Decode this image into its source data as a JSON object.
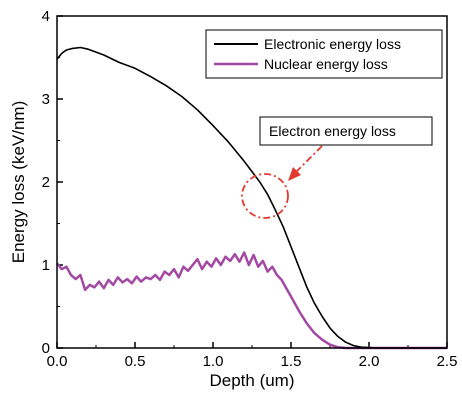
{
  "chart_data": {
    "type": "line",
    "xlabel": "Depth (um)",
    "ylabel": "Energy loss (keV/nm)",
    "xlim": [
      0.0,
      2.5
    ],
    "ylim": [
      0,
      4
    ],
    "xticks": [
      "0.0",
      "0.5",
      "1.0",
      "1.5",
      "2.0",
      "2.5"
    ],
    "yticks": [
      "0",
      "1",
      "2",
      "3",
      "4"
    ],
    "grid": false,
    "legend_position": "top-right",
    "series": [
      {
        "name": "Electronic energy loss",
        "color": "#000000",
        "x": [
          0.0,
          0.03,
          0.06,
          0.1,
          0.15,
          0.2,
          0.3,
          0.4,
          0.5,
          0.6,
          0.7,
          0.8,
          0.9,
          1.0,
          1.1,
          1.2,
          1.3,
          1.35,
          1.4,
          1.45,
          1.5,
          1.55,
          1.6,
          1.65,
          1.7,
          1.75,
          1.8,
          1.85,
          1.9,
          1.95,
          2.0,
          2.05,
          2.1,
          2.2,
          2.3,
          2.5
        ],
        "y": [
          3.48,
          3.55,
          3.59,
          3.61,
          3.62,
          3.6,
          3.53,
          3.44,
          3.37,
          3.27,
          3.16,
          3.03,
          2.87,
          2.68,
          2.48,
          2.25,
          2.0,
          1.85,
          1.66,
          1.46,
          1.22,
          0.98,
          0.74,
          0.54,
          0.38,
          0.24,
          0.14,
          0.07,
          0.03,
          0.01,
          0.005,
          0.0,
          0.0,
          0.0,
          0.0,
          0.0
        ]
      },
      {
        "name": "Nuclear energy loss",
        "color": "#a349a4",
        "x": [
          0.0,
          0.03,
          0.06,
          0.09,
          0.12,
          0.15,
          0.18,
          0.21,
          0.24,
          0.27,
          0.3,
          0.33,
          0.36,
          0.39,
          0.42,
          0.45,
          0.48,
          0.51,
          0.54,
          0.57,
          0.6,
          0.63,
          0.66,
          0.69,
          0.72,
          0.75,
          0.78,
          0.81,
          0.84,
          0.87,
          0.9,
          0.93,
          0.96,
          0.99,
          1.02,
          1.05,
          1.08,
          1.11,
          1.14,
          1.17,
          1.2,
          1.23,
          1.26,
          1.29,
          1.32,
          1.35,
          1.38,
          1.41,
          1.44,
          1.47,
          1.5,
          1.55,
          1.6,
          1.65,
          1.7,
          1.75,
          1.8,
          1.85,
          1.9,
          2.0,
          2.5
        ],
        "y": [
          1.02,
          0.95,
          0.98,
          0.88,
          0.83,
          0.88,
          0.7,
          0.76,
          0.73,
          0.8,
          0.72,
          0.82,
          0.76,
          0.85,
          0.79,
          0.83,
          0.78,
          0.86,
          0.8,
          0.85,
          0.83,
          0.88,
          0.82,
          0.92,
          0.88,
          0.95,
          0.85,
          0.98,
          0.93,
          1.0,
          1.07,
          0.95,
          1.04,
          0.98,
          1.08,
          1.0,
          1.1,
          1.05,
          1.13,
          1.04,
          1.15,
          1.0,
          1.12,
          0.98,
          1.05,
          0.92,
          0.98,
          0.88,
          0.82,
          0.72,
          0.62,
          0.45,
          0.3,
          0.18,
          0.1,
          0.04,
          0.01,
          0.0,
          0.0,
          0.0,
          0.0
        ]
      }
    ],
    "annotations": [
      {
        "text": "Electron energy loss",
        "color": "#e03a2e"
      }
    ]
  }
}
